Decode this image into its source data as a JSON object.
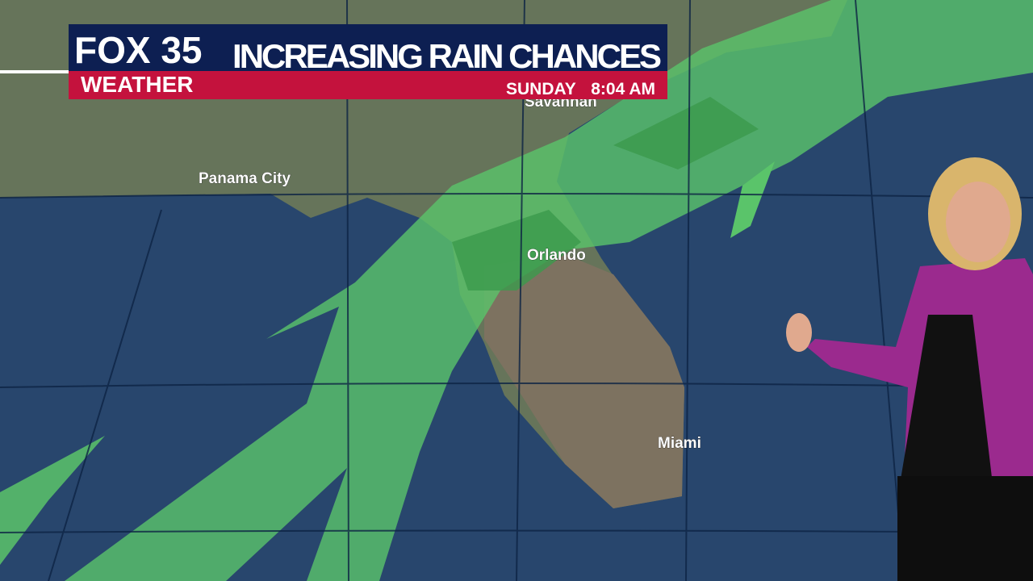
{
  "banner": {
    "brand": "FOX 35",
    "segment": "WEATHER",
    "title": "INCREASING RAIN CHANCES",
    "day": "SUNDAY",
    "time": "8:04 AM"
  },
  "map": {
    "cities": [
      "Savannah",
      "Panama City",
      "Orlando",
      "Miami"
    ]
  }
}
